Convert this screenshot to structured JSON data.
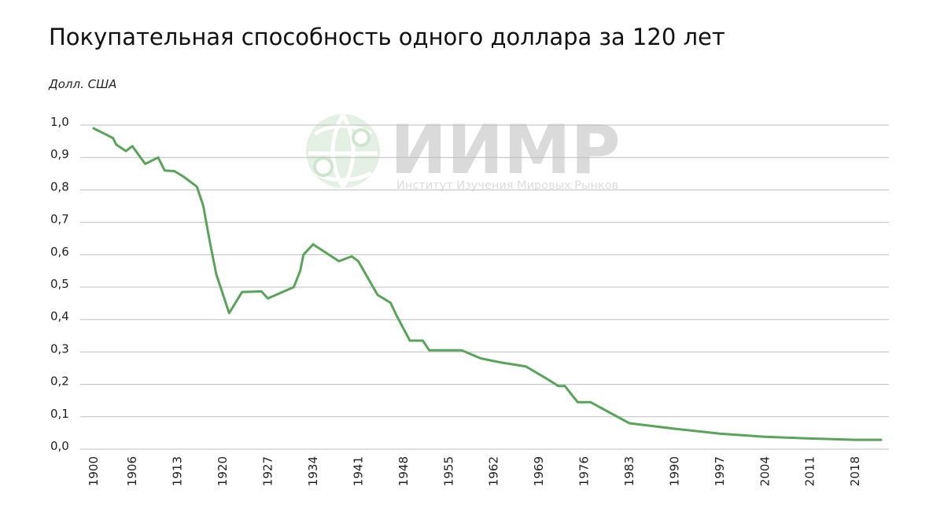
{
  "chart_data": {
    "type": "line",
    "title": "Покупательная способность одного доллара за 120 лет",
    "ylabel": "Долл. США",
    "xlabel": "",
    "ylim": [
      0,
      1.0
    ],
    "xlim": [
      1900,
      2022
    ],
    "grid": true,
    "y_ticks": [
      "0,0",
      "0,1",
      "0,2",
      "0,3",
      "0,4",
      "0,5",
      "0,6",
      "0,7",
      "0,8",
      "0,9",
      "1,0"
    ],
    "y_tick_values": [
      0,
      0.1,
      0.2,
      0.3,
      0.4,
      0.5,
      0.6,
      0.7,
      0.8,
      0.9,
      1.0
    ],
    "x_ticks": [
      "1900",
      "1906",
      "1913",
      "1920",
      "1927",
      "1934",
      "1941",
      "1948",
      "1955",
      "1962",
      "1969",
      "1976",
      "1983",
      "1990",
      "1997",
      "2004",
      "2011",
      "2018"
    ],
    "x_tick_values": [
      1900,
      1906,
      1913,
      1920,
      1927,
      1934,
      1941,
      1948,
      1955,
      1962,
      1969,
      1976,
      1983,
      1990,
      1997,
      2004,
      2011,
      2018
    ],
    "series": [
      {
        "color": "#5aa35a",
        "x": [
          1900,
          1903,
          1903.5,
          1905,
          1906,
          1908,
          1910,
          1911,
          1912.5,
          1914,
          1916,
          1917,
          1918,
          1919,
          1921,
          1923,
          1926,
          1927,
          1931,
          1932,
          1932.5,
          1934,
          1938,
          1940,
          1941,
          1944,
          1946,
          1947,
          1949,
          1951,
          1952,
          1957,
          1960,
          1963,
          1967,
          1970,
          1972,
          1973,
          1975,
          1977,
          1983,
          1990,
          1997,
          2004,
          2011,
          2018,
          2022
        ],
        "y": [
          0.99,
          0.96,
          0.94,
          0.92,
          0.935,
          0.88,
          0.9,
          0.86,
          0.858,
          0.84,
          0.81,
          0.75,
          0.64,
          0.54,
          0.42,
          0.485,
          0.487,
          0.465,
          0.5,
          0.55,
          0.6,
          0.632,
          0.58,
          0.595,
          0.58,
          0.476,
          0.452,
          0.41,
          0.335,
          0.335,
          0.305,
          0.305,
          0.28,
          0.268,
          0.255,
          0.22,
          0.195,
          0.195,
          0.145,
          0.145,
          0.08,
          0.063,
          0.048,
          0.038,
          0.033,
          0.029,
          0.029
        ]
      }
    ]
  },
  "watermark": {
    "logo": "globe-pin-logo",
    "text": "ИИМР",
    "subtitle": "Институт Изучения Мировых Рынков"
  }
}
